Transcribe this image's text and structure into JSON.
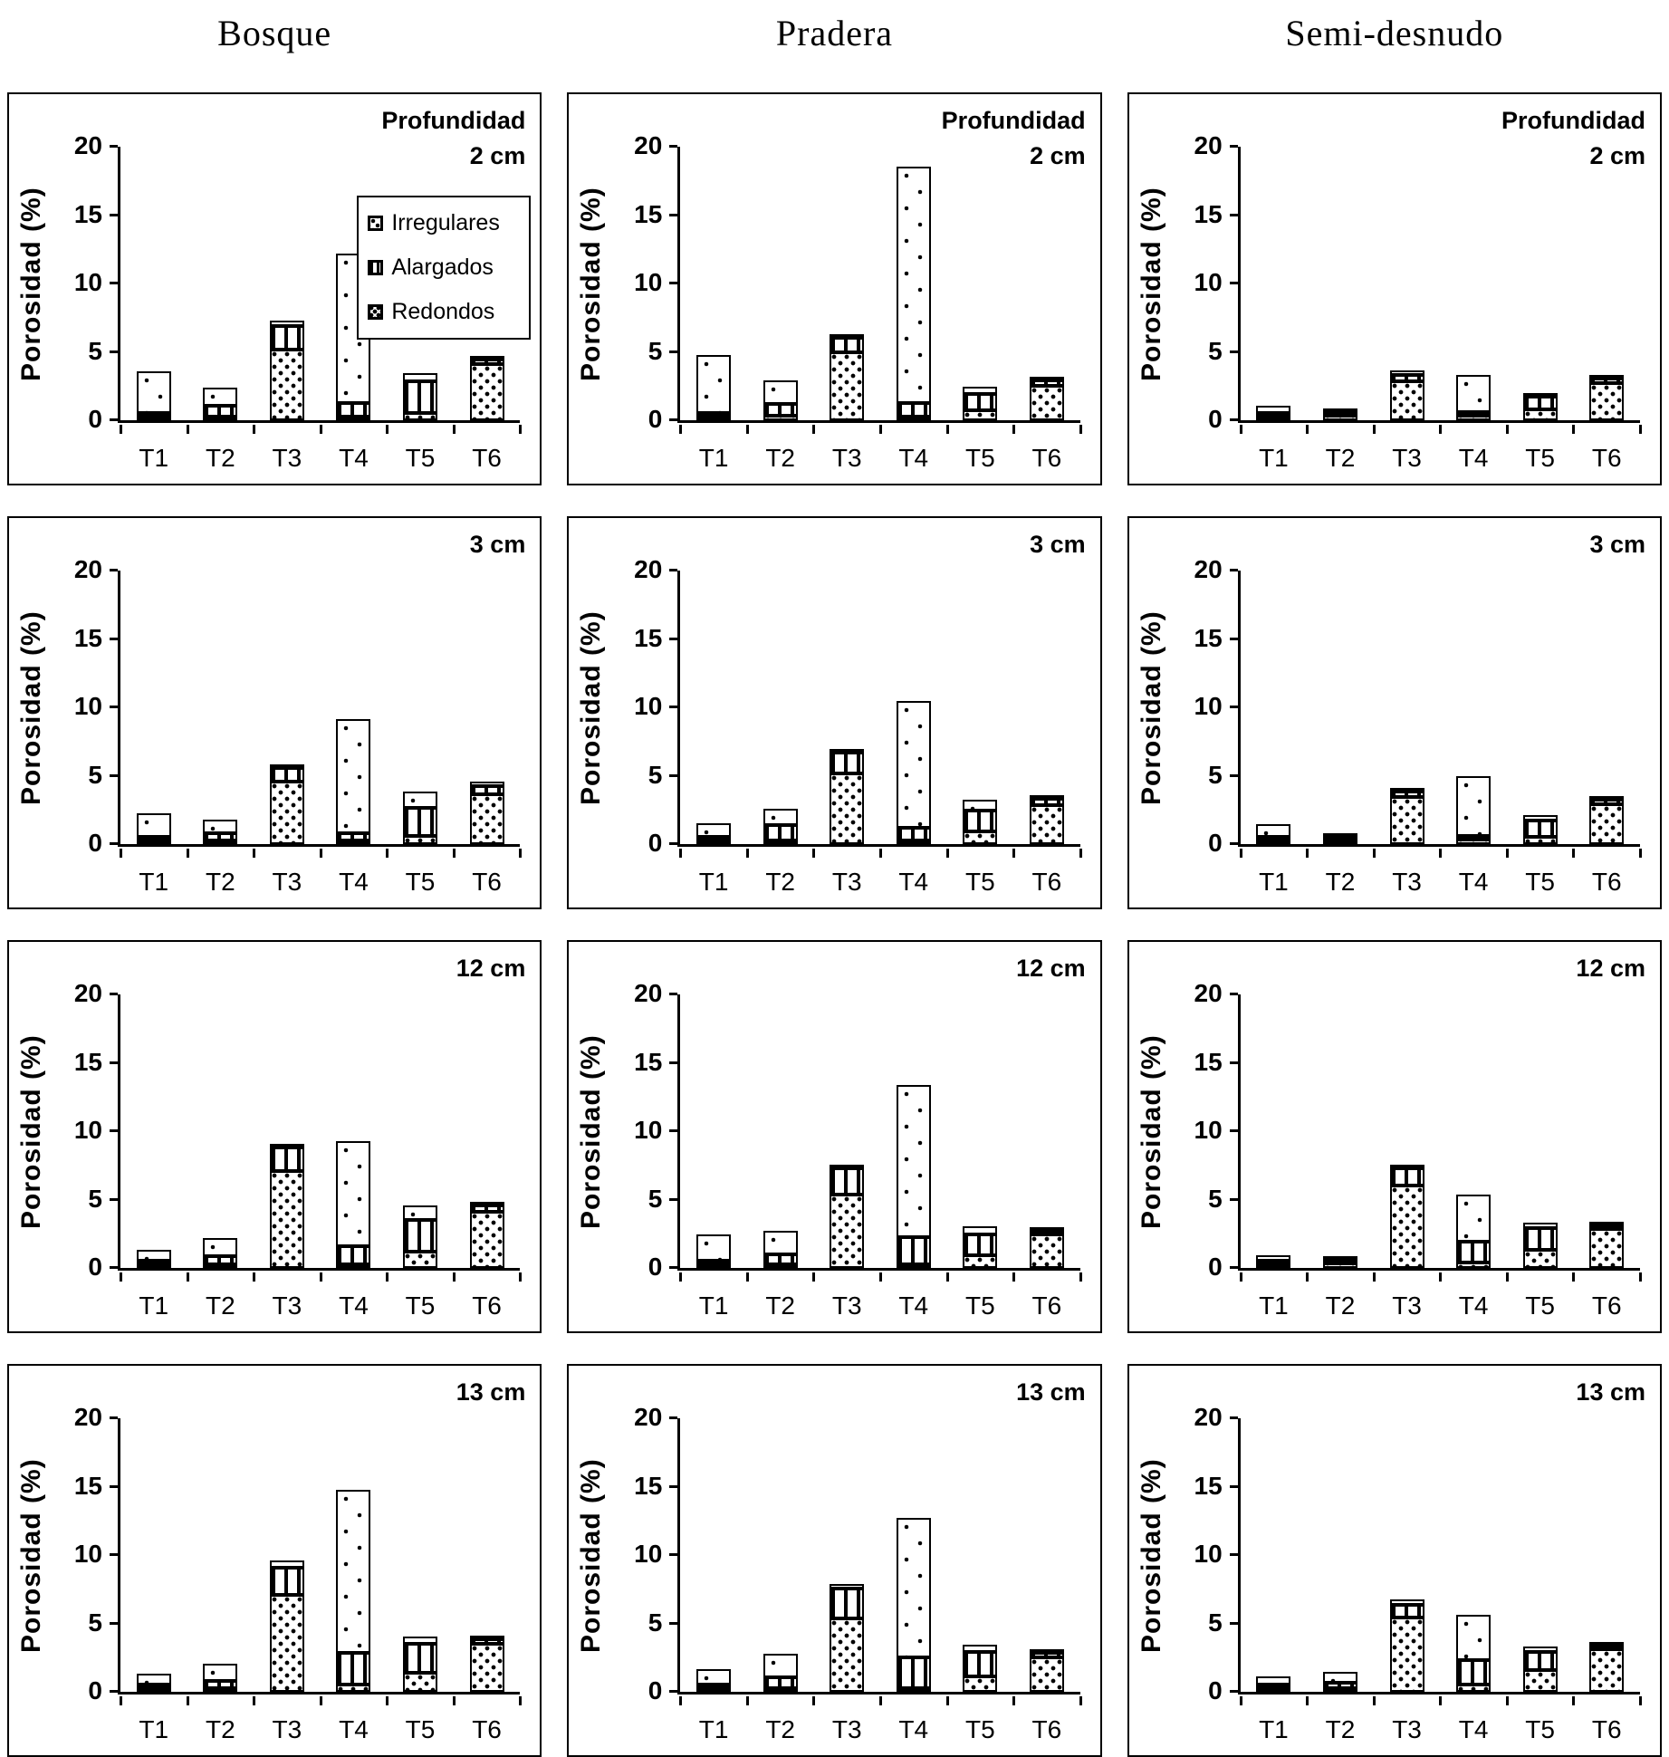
{
  "page": {
    "column_headers": [
      "Bosque",
      "Pradera",
      "Semi-desnudo"
    ]
  },
  "axis": {
    "y_label": "Porosidad (%)",
    "y_ticks": [
      0,
      5,
      10,
      15,
      20
    ],
    "y_max": 20,
    "x_categories": [
      "T1",
      "T2",
      "T3",
      "T4",
      "T5",
      "T6"
    ]
  },
  "legend": {
    "items": [
      {
        "label": "Irregulares",
        "pattern": "irregulares"
      },
      {
        "label": "Alargados",
        "pattern": "alargados"
      },
      {
        "label": "Redondos",
        "pattern": "redondos"
      }
    ]
  },
  "chart_data": [
    {
      "type": "bar",
      "stacked": true,
      "group": "Bosque",
      "depth": "2 cm",
      "title_lines": [
        "Profundidad",
        "2 cm"
      ],
      "show_legend": true,
      "categories": [
        "T1",
        "T2",
        "T3",
        "T4",
        "T5",
        "T6"
      ],
      "ylabel": "Porosidad (%)",
      "ylim": [
        0,
        20
      ],
      "stack_order": "bottom-to-top",
      "series": [
        {
          "name": "Redondos",
          "values": [
            0.1,
            0.1,
            5.1,
            0.2,
            0.5,
            4.1
          ]
        },
        {
          "name": "Alargados",
          "values": [
            0.2,
            0.8,
            1.7,
            1.0,
            2.3,
            0.3
          ]
        },
        {
          "name": "Irregulares",
          "values": [
            3.0,
            1.3,
            0.4,
            10.8,
            0.6,
            0.1
          ]
        }
      ]
    },
    {
      "type": "bar",
      "stacked": true,
      "group": "Pradera",
      "depth": "2 cm",
      "title_lines": [
        "Profundidad",
        "2 cm"
      ],
      "show_legend": false,
      "categories": [
        "T1",
        "T2",
        "T3",
        "T4",
        "T5",
        "T6"
      ],
      "ylabel": "Porosidad (%)",
      "ylim": [
        0,
        20
      ],
      "stack_order": "bottom-to-top",
      "series": [
        {
          "name": "Redondos",
          "values": [
            0.2,
            0.3,
            4.9,
            0.1,
            0.7,
            2.5
          ]
        },
        {
          "name": "Alargados",
          "values": [
            0.2,
            0.9,
            1.1,
            1.0,
            1.2,
            0.4
          ]
        },
        {
          "name": "Irregulares",
          "values": [
            4.2,
            1.7,
            0.2,
            17.1,
            0.5,
            0.1
          ]
        }
      ]
    },
    {
      "type": "bar",
      "stacked": true,
      "group": "Semi-desnudo",
      "depth": "2 cm",
      "title_lines": [
        "Profundidad",
        "2 cm"
      ],
      "show_legend": false,
      "categories": [
        "T1",
        "T2",
        "T3",
        "T4",
        "T5",
        "T6"
      ],
      "ylabel": "Porosidad (%)",
      "ylim": [
        0,
        20
      ],
      "stack_order": "bottom-to-top",
      "series": [
        {
          "name": "Redondos",
          "values": [
            0.2,
            0.3,
            2.8,
            0.3,
            0.8,
            2.7
          ]
        },
        {
          "name": "Alargados",
          "values": [
            0.1,
            0.2,
            0.5,
            0.3,
            0.9,
            0.3
          ]
        },
        {
          "name": "Irregulares",
          "values": [
            0.5,
            0.3,
            0.3,
            2.7,
            0.3,
            0.1
          ]
        }
      ]
    },
    {
      "type": "bar",
      "stacked": true,
      "group": "Bosque",
      "depth": "3 cm",
      "title_lines": [
        "3 cm"
      ],
      "show_legend": false,
      "categories": [
        "T1",
        "T2",
        "T3",
        "T4",
        "T5",
        "T6"
      ],
      "ylabel": "Porosidad (%)",
      "ylim": [
        0,
        20
      ],
      "stack_order": "bottom-to-top",
      "series": [
        {
          "name": "Redondos",
          "values": [
            0.1,
            0.2,
            4.5,
            0.2,
            0.6,
            3.6
          ]
        },
        {
          "name": "Alargados",
          "values": [
            0.2,
            0.5,
            1.0,
            0.5,
            2.0,
            0.6
          ]
        },
        {
          "name": "Irregulares",
          "values": [
            1.7,
            1.0,
            0.2,
            8.3,
            1.2,
            0.3
          ]
        }
      ]
    },
    {
      "type": "bar",
      "stacked": true,
      "group": "Pradera",
      "depth": "3 cm",
      "title_lines": [
        "3 cm"
      ],
      "show_legend": false,
      "categories": [
        "T1",
        "T2",
        "T3",
        "T4",
        "T5",
        "T6"
      ],
      "ylabel": "Porosidad (%)",
      "ylim": [
        0,
        20
      ],
      "stack_order": "bottom-to-top",
      "series": [
        {
          "name": "Redondos",
          "values": [
            0.1,
            0.2,
            5.1,
            0.1,
            0.9,
            2.8
          ]
        },
        {
          "name": "Alargados",
          "values": [
            0.2,
            1.1,
            1.5,
            0.9,
            1.5,
            0.5
          ]
        },
        {
          "name": "Irregulares",
          "values": [
            1.0,
            1.2,
            0.2,
            9.2,
            0.8,
            0.2
          ]
        }
      ]
    },
    {
      "type": "bar",
      "stacked": true,
      "group": "Semi-desnudo",
      "depth": "3 cm",
      "title_lines": [
        "3 cm"
      ],
      "show_legend": false,
      "categories": [
        "T1",
        "T2",
        "T3",
        "T4",
        "T5",
        "T6"
      ],
      "ylabel": "Porosidad (%)",
      "ylim": [
        0,
        20
      ],
      "stack_order": "bottom-to-top",
      "series": [
        {
          "name": "Redondos",
          "values": [
            0.1,
            0.2,
            3.4,
            0.3,
            0.5,
            2.9
          ]
        },
        {
          "name": "Alargados",
          "values": [
            0.1,
            0.2,
            0.4,
            0.3,
            1.2,
            0.3
          ]
        },
        {
          "name": "Irregulares",
          "values": [
            0.9,
            0.1,
            0.2,
            4.3,
            0.4,
            0.2
          ]
        }
      ]
    },
    {
      "type": "bar",
      "stacked": true,
      "group": "Bosque",
      "depth": "12 cm",
      "title_lines": [
        "12 cm"
      ],
      "show_legend": false,
      "categories": [
        "T1",
        "T2",
        "T3",
        "T4",
        "T5",
        "T6"
      ],
      "ylabel": "Porosidad (%)",
      "ylim": [
        0,
        20
      ],
      "stack_order": "bottom-to-top",
      "series": [
        {
          "name": "Redondos",
          "values": [
            0.1,
            0.2,
            7.0,
            0.2,
            1.2,
            4.1
          ]
        },
        {
          "name": "Alargados",
          "values": [
            0.1,
            0.6,
            1.7,
            1.3,
            2.3,
            0.4
          ]
        },
        {
          "name": "Irregulares",
          "values": [
            0.8,
            1.3,
            0.3,
            7.6,
            1.0,
            0.1
          ]
        }
      ]
    },
    {
      "type": "bar",
      "stacked": true,
      "group": "Pradera",
      "depth": "12 cm",
      "title_lines": [
        "12 cm"
      ],
      "show_legend": false,
      "categories": [
        "T1",
        "T2",
        "T3",
        "T4",
        "T5",
        "T6"
      ],
      "ylabel": "Porosidad (%)",
      "ylim": [
        0,
        20
      ],
      "stack_order": "bottom-to-top",
      "series": [
        {
          "name": "Redondos",
          "values": [
            0.1,
            0.2,
            5.3,
            0.2,
            0.9,
            2.4
          ]
        },
        {
          "name": "Alargados",
          "values": [
            0.1,
            0.7,
            1.9,
            2.0,
            1.5,
            0.2
          ]
        },
        {
          "name": "Irregulares",
          "values": [
            1.9,
            1.7,
            0.3,
            11.0,
            0.6,
            0.1
          ]
        }
      ]
    },
    {
      "type": "bar",
      "stacked": true,
      "group": "Semi-desnudo",
      "depth": "12 cm",
      "title_lines": [
        "12 cm"
      ],
      "show_legend": false,
      "categories": [
        "T1",
        "T2",
        "T3",
        "T4",
        "T5",
        "T6"
      ],
      "ylabel": "Porosidad (%)",
      "ylim": [
        0,
        20
      ],
      "stack_order": "bottom-to-top",
      "series": [
        {
          "name": "Redondos",
          "values": [
            0.1,
            0.3,
            6.0,
            0.4,
            1.3,
            2.8
          ]
        },
        {
          "name": "Alargados",
          "values": [
            0.1,
            0.3,
            1.2,
            1.5,
            1.6,
            0.2
          ]
        },
        {
          "name": "Irregulares",
          "values": [
            0.4,
            0.2,
            0.3,
            3.4,
            0.4,
            0.1
          ]
        }
      ]
    },
    {
      "type": "bar",
      "stacked": true,
      "group": "Bosque",
      "depth": "13 cm",
      "title_lines": [
        "13 cm"
      ],
      "show_legend": false,
      "categories": [
        "T1",
        "T2",
        "T3",
        "T4",
        "T5",
        "T6"
      ],
      "ylabel": "Porosidad (%)",
      "ylim": [
        0,
        20
      ],
      "stack_order": "bottom-to-top",
      "series": [
        {
          "name": "Redondos",
          "values": [
            0.2,
            0.2,
            7.0,
            0.5,
            1.4,
            3.5
          ]
        },
        {
          "name": "Alargados",
          "values": [
            0.2,
            0.5,
            2.0,
            2.3,
            2.1,
            0.3
          ]
        },
        {
          "name": "Irregulares",
          "values": [
            0.8,
            1.3,
            0.5,
            11.8,
            0.5,
            0.1
          ]
        }
      ]
    },
    {
      "type": "bar",
      "stacked": true,
      "group": "Pradera",
      "depth": "13 cm",
      "title_lines": [
        "13 cm"
      ],
      "show_legend": false,
      "categories": [
        "T1",
        "T2",
        "T3",
        "T4",
        "T5",
        "T6"
      ],
      "ylabel": "Porosidad (%)",
      "ylim": [
        0,
        20
      ],
      "stack_order": "bottom-to-top",
      "series": [
        {
          "name": "Redondos",
          "values": [
            0.1,
            0.2,
            5.3,
            0.2,
            1.1,
            2.5
          ]
        },
        {
          "name": "Alargados",
          "values": [
            0.1,
            0.8,
            2.2,
            2.2,
            1.8,
            0.3
          ]
        },
        {
          "name": "Irregulares",
          "values": [
            1.1,
            1.7,
            0.3,
            10.1,
            0.5,
            0.2
          ]
        }
      ]
    },
    {
      "type": "bar",
      "stacked": true,
      "group": "Semi-desnudo",
      "depth": "13 cm",
      "title_lines": [
        "13 cm"
      ],
      "show_legend": false,
      "categories": [
        "T1",
        "T2",
        "T3",
        "T4",
        "T5",
        "T6"
      ],
      "ylabel": "Porosidad (%)",
      "ylim": [
        0,
        20
      ],
      "stack_order": "bottom-to-top",
      "series": [
        {
          "name": "Redondos",
          "values": [
            0.1,
            0.2,
            5.4,
            0.5,
            1.6,
            3.1
          ]
        },
        {
          "name": "Alargados",
          "values": [
            0.1,
            0.4,
            0.9,
            1.8,
            1.3,
            0.2
          ]
        },
        {
          "name": "Irregulares",
          "values": [
            0.6,
            0.8,
            0.4,
            3.3,
            0.4,
            0.1
          ]
        }
      ]
    }
  ]
}
